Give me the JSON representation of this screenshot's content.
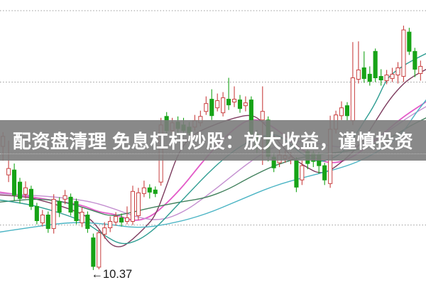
{
  "banner": {
    "text": "配资盘清理 免息杠杆炒股：放大收益，谨慎投资",
    "bg_color": "rgba(124,124,124,0.90)",
    "text_color": "#ffffff"
  },
  "chart_data": {
    "type": "candlestick",
    "title": "",
    "xlabel": "",
    "ylabel": "",
    "ylim": [
      10.16,
      14.149
    ],
    "grid": "dotted-horizontal",
    "gridline_prices": [
      14.0,
      13.0,
      12.0,
      11.0
    ],
    "legend_position": "none",
    "colors": {
      "up_candle": "#c94040",
      "up_fill": "#ffffff",
      "down_candle": "#17a317",
      "grid": "#9a9a9a",
      "annotation_text": "#1a1a1a",
      "background": "#ffffff"
    },
    "low_annotation": {
      "arrow_glyph": "←",
      "value": "10.37",
      "label": "←10.37",
      "index": 16,
      "price": 10.37
    },
    "candles_format": [
      "open",
      "high",
      "low",
      "close"
    ],
    "candles": [
      [
        12.1,
        12.3,
        11.9,
        12.24
      ],
      [
        11.7,
        12.18,
        11.6,
        11.79
      ],
      [
        11.77,
        11.86,
        11.34,
        11.42
      ],
      [
        11.6,
        11.66,
        11.3,
        11.37
      ],
      [
        11.43,
        11.61,
        11.37,
        11.52
      ],
      [
        11.5,
        11.55,
        11.21,
        11.26
      ],
      [
        11.26,
        11.31,
        11.01,
        11.06
      ],
      [
        11.03,
        11.21,
        10.98,
        11.14
      ],
      [
        11.14,
        11.19,
        10.89,
        10.95
      ],
      [
        10.95,
        11.43,
        10.88,
        11.36
      ],
      [
        11.33,
        11.39,
        11.11,
        11.18
      ],
      [
        11.36,
        11.49,
        11.29,
        11.41
      ],
      [
        11.39,
        11.44,
        11.13,
        11.18
      ],
      [
        11.33,
        11.37,
        11.01,
        11.06
      ],
      [
        11.03,
        11.25,
        10.97,
        11.18
      ],
      [
        11.14,
        11.19,
        10.89,
        10.95
      ],
      [
        10.82,
        10.88,
        10.37,
        10.42
      ],
      [
        10.41,
        10.94,
        10.38,
        10.89
      ],
      [
        10.87,
        11.04,
        10.81,
        10.96
      ],
      [
        10.96,
        11.12,
        10.9,
        11.05
      ],
      [
        11.04,
        11.18,
        10.99,
        11.12
      ],
      [
        11.1,
        11.16,
        10.98,
        11.04
      ],
      [
        11.05,
        11.26,
        11.01,
        11.1
      ],
      [
        11.05,
        11.55,
        11.0,
        11.47
      ],
      [
        11.13,
        11.52,
        11.07,
        11.45
      ],
      [
        11.44,
        11.62,
        11.39,
        11.52
      ],
      [
        11.52,
        11.57,
        11.37,
        11.46
      ],
      [
        11.49,
        11.54,
        11.39,
        11.44
      ],
      [
        11.6,
        12.5,
        11.55,
        12.4
      ],
      [
        12.52,
        12.58,
        12.26,
        12.32
      ],
      [
        12.32,
        12.5,
        12.27,
        12.43
      ],
      [
        12.44,
        12.52,
        12.29,
        12.35
      ],
      [
        12.4,
        12.5,
        12.25,
        12.32
      ],
      [
        12.37,
        12.44,
        12.23,
        12.29
      ],
      [
        12.37,
        12.54,
        12.32,
        12.46
      ],
      [
        12.43,
        12.6,
        12.38,
        12.52
      ],
      [
        12.59,
        12.8,
        12.54,
        12.7
      ],
      [
        12.76,
        12.9,
        12.47,
        12.53
      ],
      [
        12.64,
        12.84,
        12.59,
        12.74
      ],
      [
        12.57,
        12.86,
        12.52,
        12.78
      ],
      [
        12.76,
        13.06,
        12.61,
        12.68
      ],
      [
        12.72,
        12.94,
        12.65,
        12.76
      ],
      [
        12.75,
        12.82,
        12.57,
        12.63
      ],
      [
        12.67,
        12.8,
        12.59,
        12.71
      ],
      [
        12.75,
        12.8,
        12.21,
        12.27
      ],
      [
        12.27,
        12.33,
        12.01,
        12.09
      ],
      [
        12.47,
        12.94,
        11.84,
        12.59
      ],
      [
        12.47,
        12.52,
        11.89,
        11.96
      ],
      [
        11.95,
        12.01,
        11.74,
        11.8
      ],
      [
        11.87,
        12.05,
        11.81,
        11.98
      ],
      [
        11.93,
        12.04,
        11.87,
        11.97
      ],
      [
        11.92,
        12.02,
        11.85,
        11.95
      ],
      [
        11.91,
        11.95,
        11.46,
        11.53
      ],
      [
        11.63,
        11.9,
        11.56,
        11.83
      ],
      [
        12.03,
        12.07,
        11.78,
        11.86
      ],
      [
        12.0,
        12.04,
        11.81,
        11.89
      ],
      [
        11.98,
        12.02,
        11.72,
        11.83
      ],
      [
        11.83,
        11.87,
        11.56,
        11.63
      ],
      [
        11.58,
        12.53,
        11.52,
        12.34
      ],
      [
        12.34,
        12.6,
        12.28,
        12.54
      ],
      [
        12.53,
        12.73,
        12.47,
        12.64
      ],
      [
        12.67,
        12.72,
        12.46,
        12.53
      ],
      [
        12.46,
        13.56,
        12.4,
        13.06
      ],
      [
        13.04,
        13.57,
        12.98,
        13.17
      ],
      [
        13.2,
        13.43,
        12.99,
        13.05
      ],
      [
        13.11,
        13.22,
        12.95,
        13.01
      ],
      [
        13.43,
        13.47,
        13.0,
        13.06
      ],
      [
        13.08,
        13.18,
        12.95,
        13.03
      ],
      [
        13.02,
        13.17,
        12.97,
        13.1
      ],
      [
        13.05,
        13.2,
        13.0,
        13.11
      ],
      [
        13.1,
        13.28,
        12.98,
        13.2
      ],
      [
        13.08,
        13.79,
        13.0,
        13.73
      ],
      [
        13.7,
        13.76,
        13.38,
        13.43
      ],
      [
        13.43,
        13.48,
        13.07,
        13.18
      ],
      [
        13.12,
        13.3,
        13.02,
        13.22
      ]
    ],
    "ma_lines": [
      {
        "name": "ma-magenta",
        "color": "#e35bc8",
        "width": 1.8,
        "points": [
          [
            -0.6,
            11.46
          ],
          [
            3,
            11.42
          ],
          [
            6,
            11.38
          ],
          [
            10,
            11.33
          ],
          [
            14,
            11.28
          ],
          [
            17,
            11.18
          ],
          [
            20,
            11.15
          ],
          [
            23,
            11.05
          ],
          [
            26,
            11.1
          ],
          [
            29,
            11.3
          ],
          [
            32,
            11.55
          ],
          [
            35,
            11.85
          ],
          [
            38,
            12.12
          ],
          [
            41,
            12.35
          ],
          [
            44,
            12.5
          ],
          [
            47,
            12.42
          ],
          [
            50,
            12.25
          ],
          [
            53,
            12.05
          ],
          [
            56,
            11.9
          ],
          [
            59,
            11.86
          ],
          [
            62,
            11.95
          ],
          [
            65,
            12.12
          ],
          [
            68,
            12.32
          ],
          [
            71,
            12.52
          ],
          [
            75.5,
            12.75
          ]
        ]
      },
      {
        "name": "ma-plum",
        "color": "#c48fd0",
        "width": 1.4,
        "points": [
          [
            -0.6,
            11.44
          ],
          [
            4,
            11.42
          ],
          [
            8,
            11.4
          ],
          [
            12,
            11.37
          ],
          [
            16,
            11.32
          ],
          [
            20,
            11.22
          ],
          [
            24,
            11.1
          ],
          [
            28,
            11.06
          ],
          [
            32,
            11.18
          ],
          [
            36,
            11.4
          ],
          [
            40,
            11.65
          ],
          [
            44,
            11.9
          ],
          [
            48,
            12.1
          ],
          [
            52,
            12.18
          ],
          [
            56,
            12.14
          ],
          [
            60,
            12.08
          ],
          [
            63,
            12.1
          ],
          [
            66,
            12.2
          ],
          [
            69,
            12.35
          ],
          [
            72,
            12.52
          ],
          [
            75.5,
            12.68
          ]
        ]
      },
      {
        "name": "ma-maroon",
        "color": "#7d3b5e",
        "width": 1.4,
        "points": [
          [
            -0.6,
            11.42
          ],
          [
            4,
            11.4
          ],
          [
            8,
            11.32
          ],
          [
            12,
            11.22
          ],
          [
            15,
            11.12
          ],
          [
            17,
            10.95
          ],
          [
            19,
            10.72
          ],
          [
            21,
            10.68
          ],
          [
            23,
            10.8
          ],
          [
            25,
            10.95
          ],
          [
            27,
            11.12
          ],
          [
            29,
            11.55
          ],
          [
            31,
            12.0
          ],
          [
            33,
            12.22
          ],
          [
            35,
            12.32
          ],
          [
            38,
            12.42
          ],
          [
            41,
            12.5
          ],
          [
            44,
            12.55
          ],
          [
            46,
            12.45
          ],
          [
            48,
            12.25
          ],
          [
            50,
            12.05
          ],
          [
            52,
            11.9
          ],
          [
            54,
            11.8
          ],
          [
            56,
            11.72
          ],
          [
            58,
            11.76
          ],
          [
            60,
            11.88
          ],
          [
            62,
            12.02
          ],
          [
            64,
            12.2
          ],
          [
            66,
            12.45
          ],
          [
            68,
            12.7
          ],
          [
            70,
            12.9
          ],
          [
            72,
            13.05
          ],
          [
            75.5,
            13.2
          ]
        ]
      },
      {
        "name": "ma-seagreen",
        "color": "#40805c",
        "width": 1.4,
        "points": [
          [
            -0.6,
            11.32
          ],
          [
            4,
            11.36
          ],
          [
            8,
            11.36
          ],
          [
            12,
            11.3
          ],
          [
            16,
            11.2
          ],
          [
            19,
            11.12
          ],
          [
            22,
            11.16
          ],
          [
            25,
            11.22
          ],
          [
            28,
            11.27
          ],
          [
            32,
            11.33
          ],
          [
            36,
            11.38
          ],
          [
            40,
            11.5
          ],
          [
            44,
            11.68
          ],
          [
            48,
            11.83
          ],
          [
            52,
            11.93
          ],
          [
            56,
            11.99
          ],
          [
            60,
            12.02
          ],
          [
            64,
            12.07
          ],
          [
            67,
            12.15
          ],
          [
            70,
            12.28
          ],
          [
            72,
            12.38
          ],
          [
            75.5,
            12.52
          ]
        ]
      },
      {
        "name": "ma-teal",
        "color": "#2e9d92",
        "width": 1.4,
        "points": [
          [
            -0.6,
            11.35
          ],
          [
            4,
            11.3
          ],
          [
            8,
            11.22
          ],
          [
            12,
            11.12
          ],
          [
            15,
            11.02
          ],
          [
            18,
            10.85
          ],
          [
            21,
            10.72
          ],
          [
            24,
            10.78
          ],
          [
            27,
            10.95
          ],
          [
            30,
            11.2
          ],
          [
            33,
            11.45
          ],
          [
            36,
            11.7
          ],
          [
            39,
            11.92
          ],
          [
            42,
            12.1
          ],
          [
            45,
            12.22
          ],
          [
            48,
            12.28
          ],
          [
            50,
            12.2
          ],
          [
            52,
            12.05
          ],
          [
            54,
            11.95
          ],
          [
            56,
            11.88
          ],
          [
            58,
            11.92
          ],
          [
            60,
            12.0
          ],
          [
            62,
            12.2
          ],
          [
            64,
            12.45
          ],
          [
            66,
            12.7
          ],
          [
            68,
            13.05
          ],
          [
            70,
            13.18
          ],
          [
            72,
            13.28
          ],
          [
            75.5,
            13.42
          ]
        ]
      },
      {
        "name": "ma-cyan",
        "color": "#4ab4c4",
        "width": 1.4,
        "points": [
          [
            -0.6,
            10.9
          ],
          [
            6,
            10.98
          ],
          [
            12,
            11.04
          ],
          [
            18,
            11.02
          ],
          [
            24,
            10.95
          ],
          [
            30,
            11.02
          ],
          [
            36,
            11.15
          ],
          [
            42,
            11.35
          ],
          [
            48,
            11.55
          ],
          [
            54,
            11.68
          ],
          [
            60,
            11.8
          ],
          [
            64,
            11.92
          ],
          [
            68,
            12.1
          ],
          [
            71,
            12.3
          ],
          [
            73,
            12.55
          ],
          [
            75.5,
            12.8
          ]
        ]
      }
    ]
  }
}
